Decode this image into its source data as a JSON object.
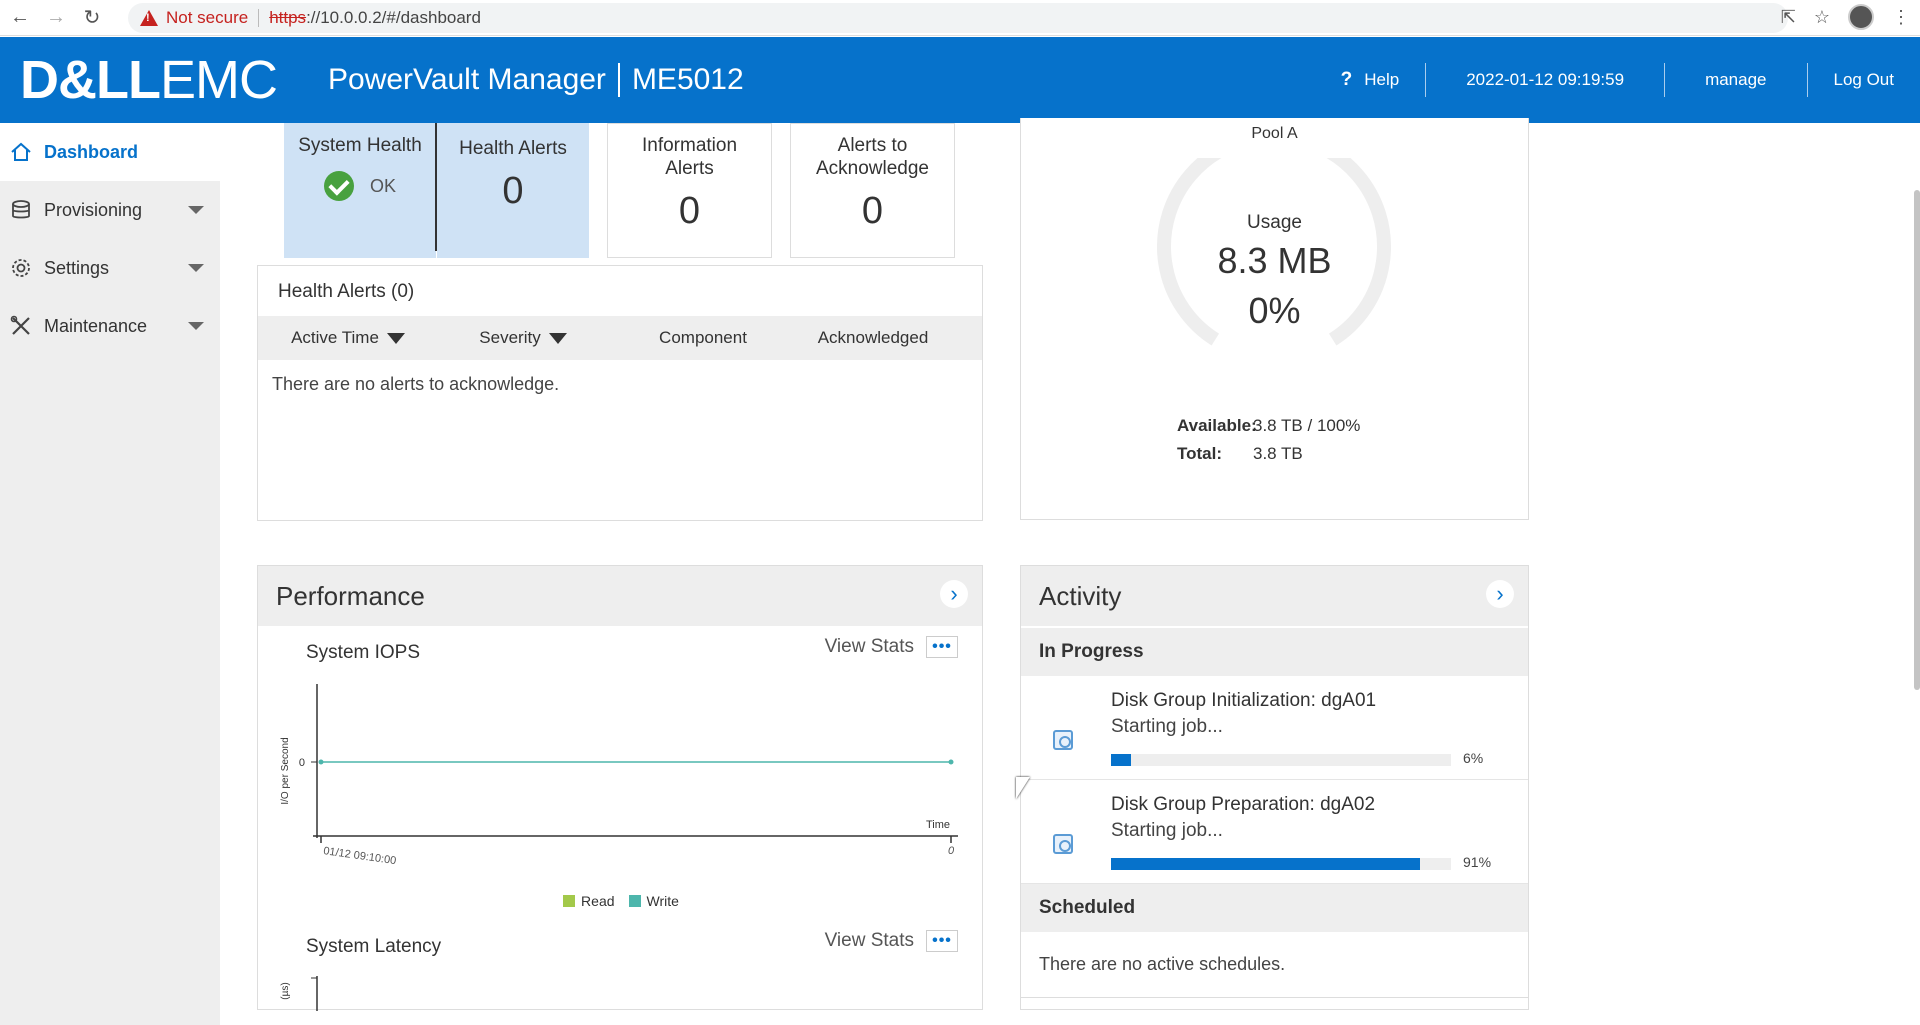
{
  "browser": {
    "not_secure": "Not secure",
    "url_scheme": "https",
    "url_rest": "://10.0.0.2/#/dashboard"
  },
  "header": {
    "logo_dell": "D&LL",
    "logo_emc": "EMC",
    "product": "PowerVault Manager",
    "model": "ME5012",
    "help": "Help",
    "datetime": "2022-01-12 09:19:59",
    "user": "manage",
    "logout": "Log Out"
  },
  "sidebar": {
    "items": [
      {
        "label": "Dashboard",
        "icon": "home-icon",
        "active": true
      },
      {
        "label": "Provisioning",
        "icon": "database-icon"
      },
      {
        "label": "Settings",
        "icon": "gear-icon"
      },
      {
        "label": "Maintenance",
        "icon": "tools-icon"
      }
    ]
  },
  "alerts": {
    "system_health_title": "System Health",
    "system_health_value": "OK",
    "health_alerts_title": "Health Alerts",
    "health_alerts_count": "0",
    "info_alerts_title_1": "Information",
    "info_alerts_title_2": "Alerts",
    "info_alerts_count": "0",
    "ack_title_1": "Alerts to",
    "ack_title_2": "Acknowledge",
    "ack_count": "0",
    "table_title": "Health Alerts (0)",
    "columns": [
      "Active Time",
      "Severity",
      "Component",
      "Acknowledged"
    ],
    "empty_message": "There are no alerts to acknowledge."
  },
  "capacity": {
    "pool": "Pool A",
    "usage_label": "Usage",
    "usage_value": "8.3 MB",
    "usage_pct": "0%",
    "usage_fraction": 0.0,
    "available_label": "Available:",
    "available_value": "3.8 TB / 100%",
    "total_label": "Total:",
    "total_value": "3.8 TB"
  },
  "performance": {
    "title": "Performance",
    "iops_title": "System IOPS",
    "view_stats": "View Stats",
    "latency_title": "System Latency",
    "legend_read": "Read",
    "legend_write": "Write"
  },
  "chart_data": {
    "type": "line",
    "title": "System IOPS",
    "ylabel": "I/O per Second",
    "xlabel": "Time",
    "x_tick_labels": [
      "01/12 09:10:00",
      "0"
    ],
    "y_tick_labels": [
      "0"
    ],
    "series": [
      {
        "name": "Write",
        "color": "#4db6ac",
        "values": [
          0,
          0
        ]
      }
    ],
    "legend": [
      {
        "name": "Read",
        "color": "#a3c94a"
      },
      {
        "name": "Write",
        "color": "#4db6ac"
      }
    ],
    "latency_ylabel": "(µs)"
  },
  "activity": {
    "title": "Activity",
    "in_progress": "In Progress",
    "jobs": [
      {
        "title": "Disk Group Initialization: dgA01",
        "status": "Starting job...",
        "progress": 0.06,
        "pct": "6%"
      },
      {
        "title": "Disk Group Preparation: dgA02",
        "status": "Starting job...",
        "progress": 0.91,
        "pct": "91%"
      }
    ],
    "scheduled": "Scheduled",
    "no_schedules": "There are no active schedules."
  },
  "colors": {
    "brand": "#0672cb",
    "ok": "#48a13f",
    "tile_highlight": "#cfe2f5"
  }
}
